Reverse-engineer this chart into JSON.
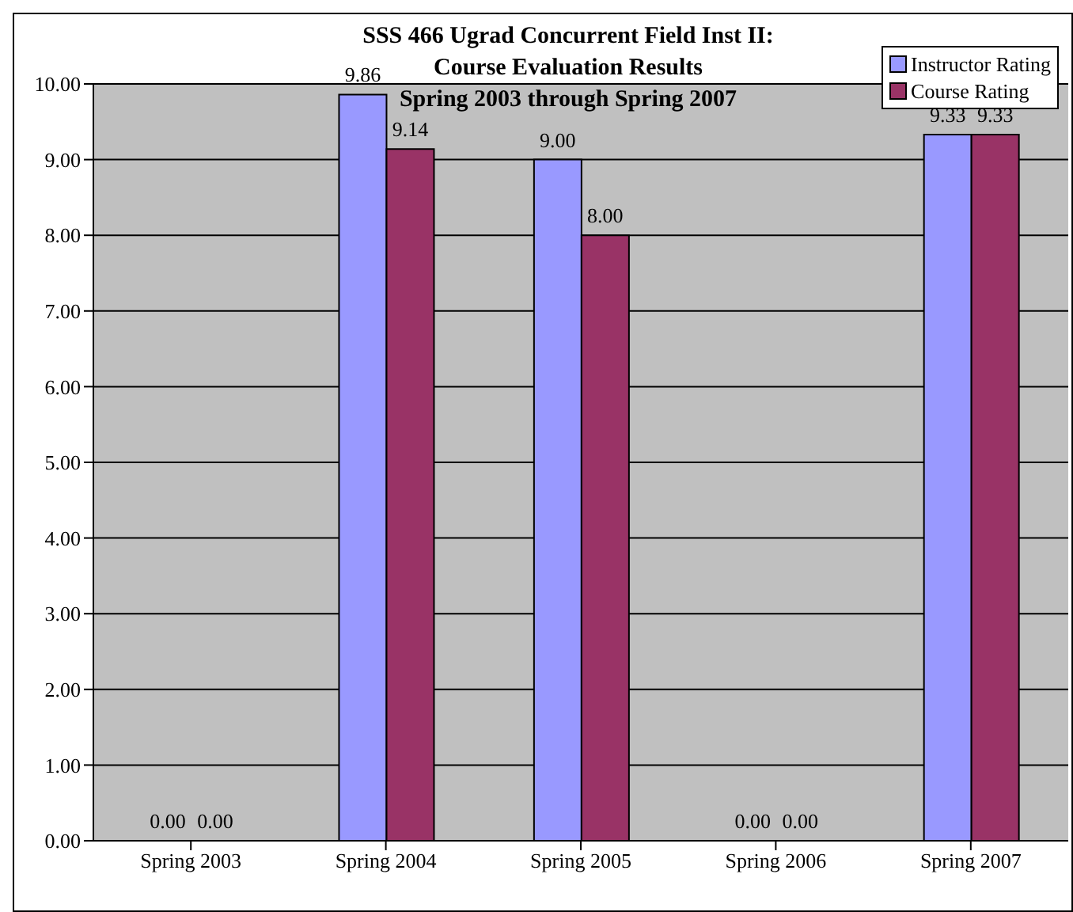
{
  "chart_data": {
    "type": "bar",
    "title": "SSS 466 Ugrad Concurrent Field Inst II:\nCourse Evaluation Results\nSpring 2003 through Spring 2007",
    "categories": [
      "Spring 2003",
      "Spring 2004",
      "Spring 2005",
      "Spring 2006",
      "Spring 2007"
    ],
    "series": [
      {
        "name": "Instructor Rating",
        "color": "#9999ff",
        "values": [
          0,
          9.86,
          9,
          0,
          9.33
        ],
        "value_labels": [
          "0.00",
          "9.86",
          "9.00",
          "0.00",
          "9.33"
        ]
      },
      {
        "name": "Course Rating",
        "color": "#993366",
        "values": [
          0,
          9.14,
          8,
          0,
          9.33
        ],
        "value_labels": [
          "0.00",
          "9.14",
          "8.00",
          "0.00",
          "9.33"
        ]
      }
    ],
    "ylim": [
      0,
      10
    ],
    "yticks": [
      {
        "value": 0,
        "label": "0.00"
      },
      {
        "value": 1,
        "label": "1.00"
      },
      {
        "value": 2,
        "label": "2.00"
      },
      {
        "value": 3,
        "label": "3.00"
      },
      {
        "value": 4,
        "label": "4.00"
      },
      {
        "value": 5,
        "label": "5.00"
      },
      {
        "value": 6,
        "label": "6.00"
      },
      {
        "value": 7,
        "label": "7.00"
      },
      {
        "value": 8,
        "label": "8.00"
      },
      {
        "value": 9,
        "label": "9.00"
      },
      {
        "value": 10,
        "label": "10.00"
      }
    ],
    "grid": "y",
    "legend": "top right"
  }
}
